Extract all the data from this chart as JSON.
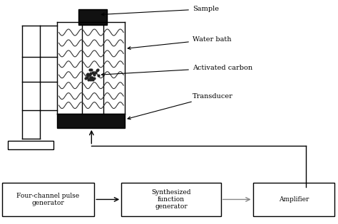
{
  "bg_color": "#ffffff",
  "line_color": "#000000",
  "labels": {
    "sample": "Sample",
    "water_bath": "Water bath",
    "activated_carbon": "Activated carbon",
    "transducer": "Transducer",
    "box1": "Four-channel pulse\ngenerator",
    "box2": "Synthesized\nfunction\ngenerator",
    "box3": "Amplifier"
  },
  "figsize": [
    4.74,
    3.15
  ],
  "dpi": 100
}
